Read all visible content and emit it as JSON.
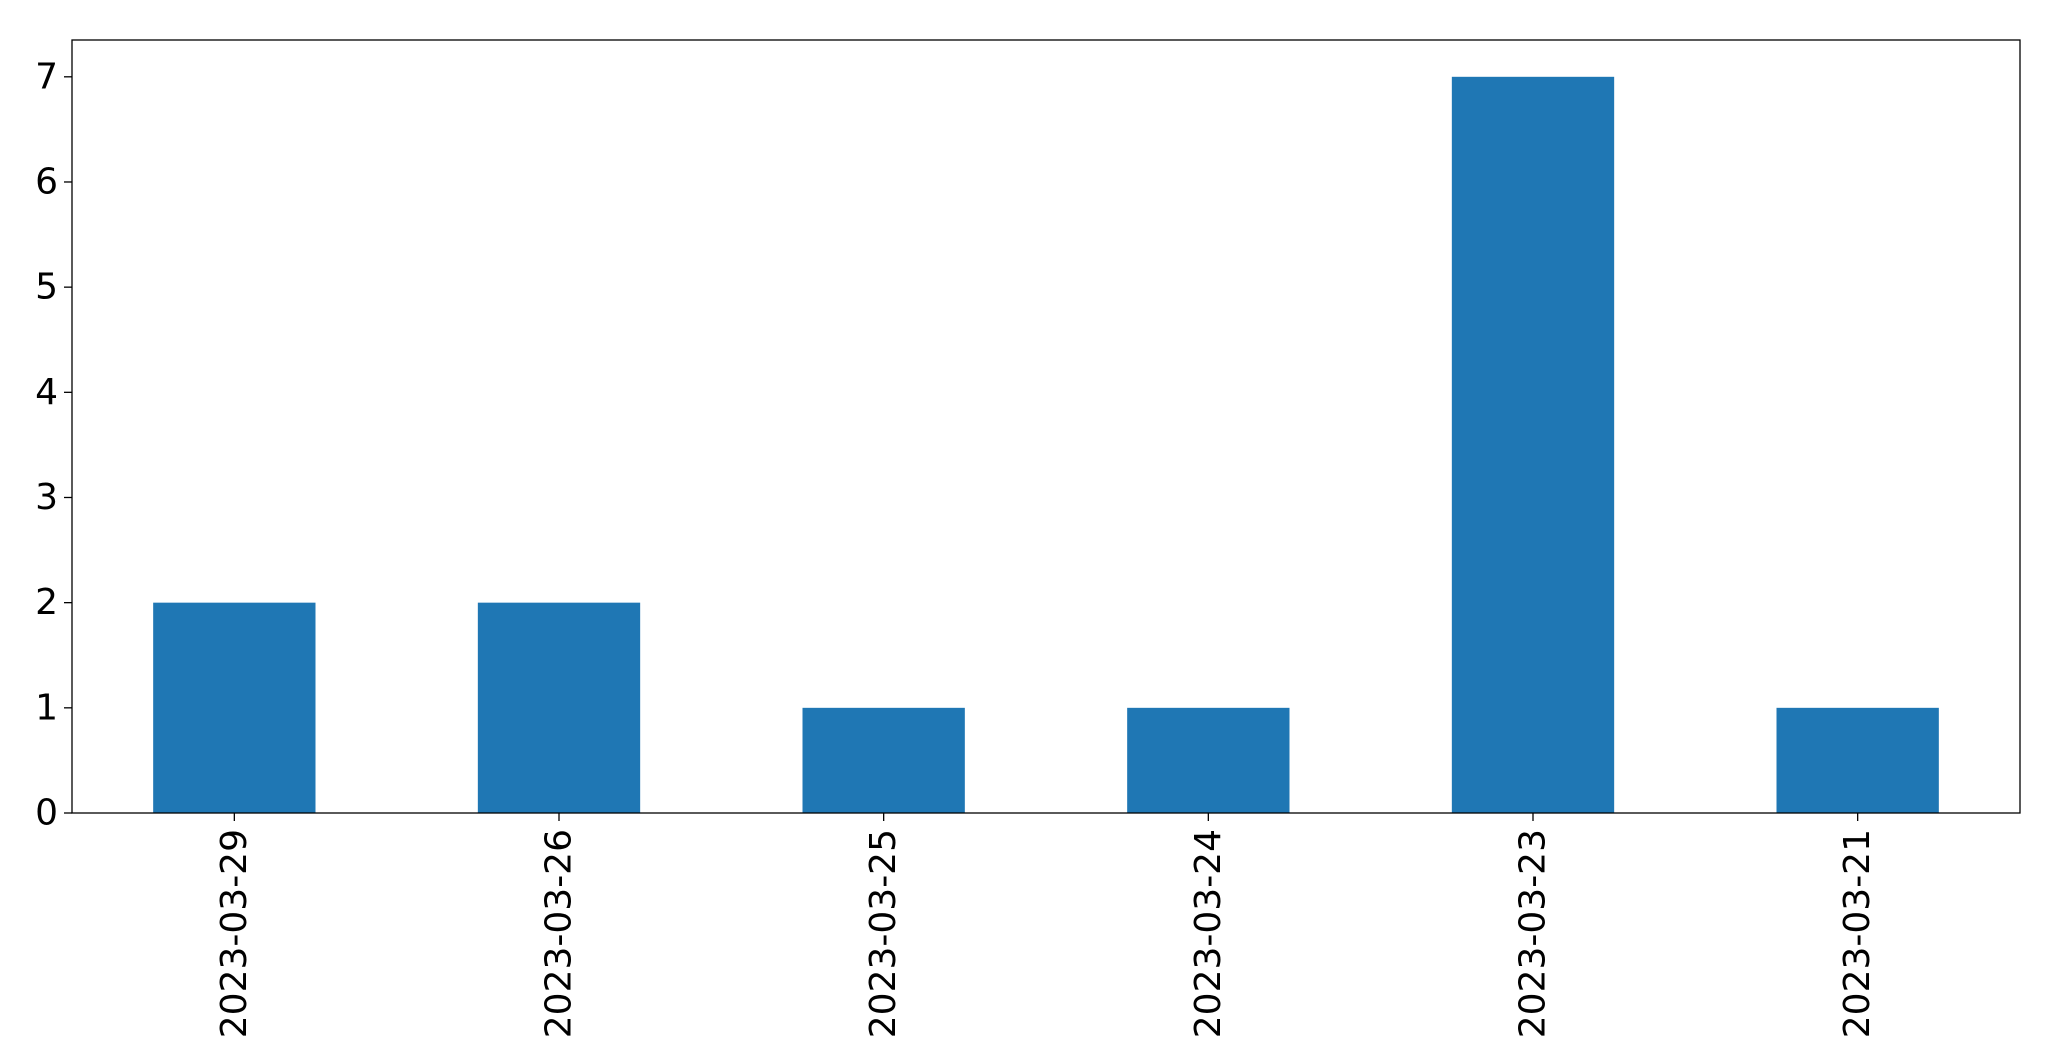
{
  "chart_data": {
    "type": "bar",
    "title": "",
    "xlabel": "",
    "ylabel": "",
    "categories": [
      "2023-03-29",
      "2023-03-26",
      "2023-03-25",
      "2023-03-24",
      "2023-03-23",
      "2023-03-21"
    ],
    "values": [
      2,
      2,
      1,
      1,
      7,
      1
    ],
    "ylim": [
      0,
      7.35
    ],
    "yticks": [
      0,
      1,
      2,
      3,
      4,
      5,
      6,
      7
    ],
    "grid": false,
    "legend": "none",
    "bar_color": "#1f77b4"
  }
}
